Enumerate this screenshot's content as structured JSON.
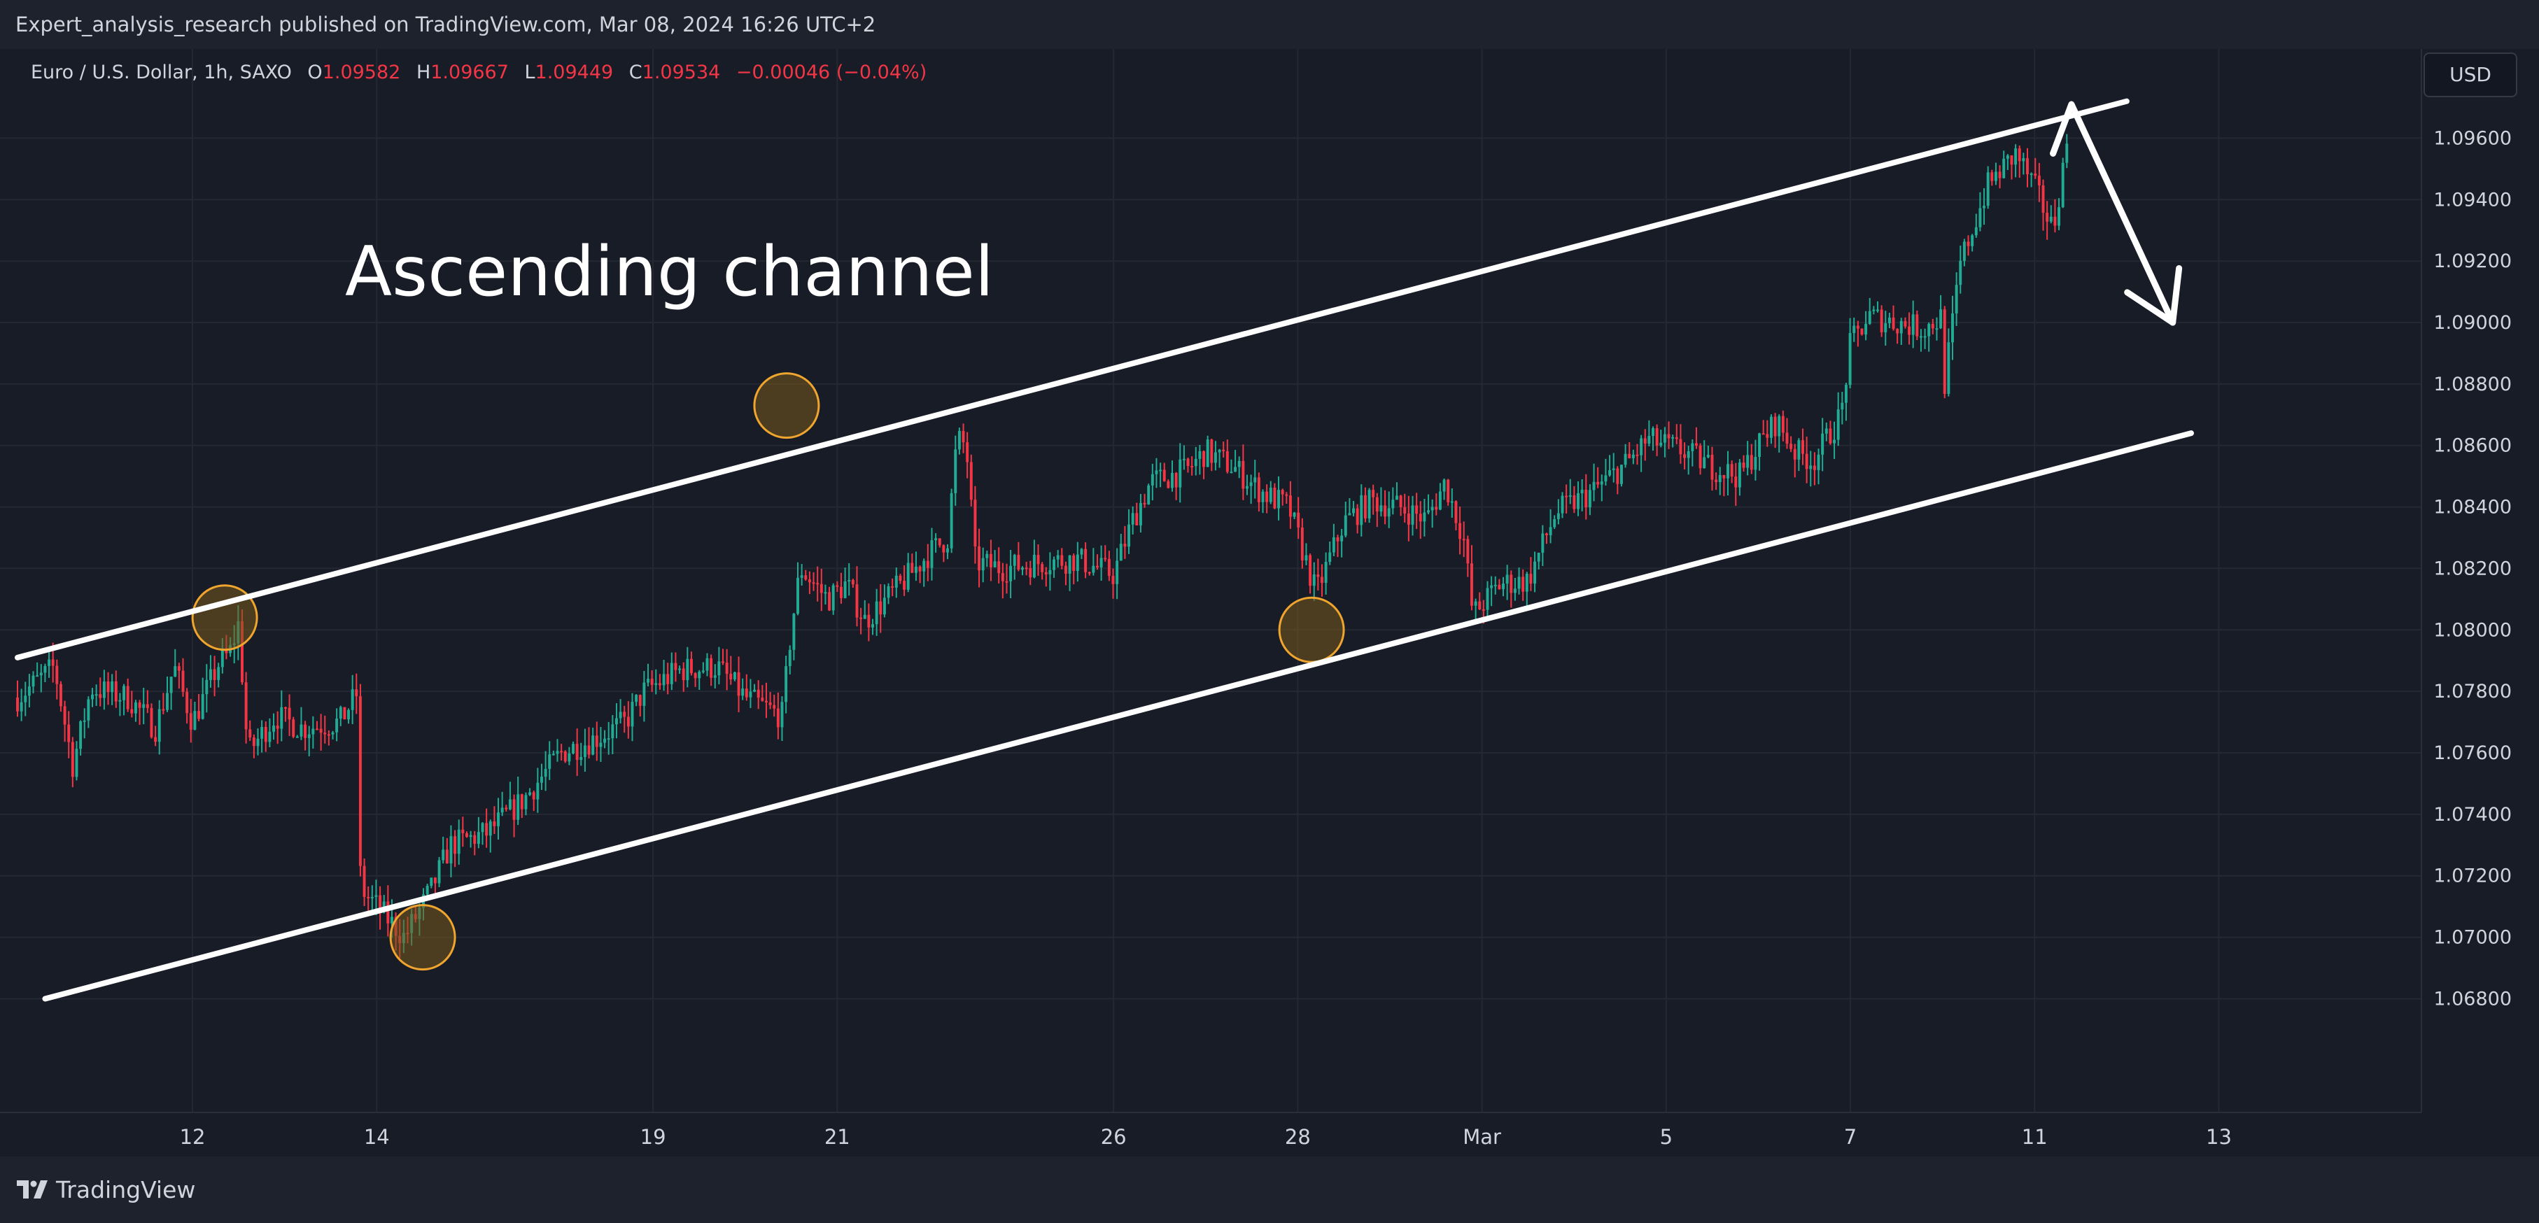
{
  "header": {
    "published_by": "Expert_analysis_research published on TradingView.com, Mar 08, 2024 16:26 UTC+2"
  },
  "legend": {
    "symbol": "Euro / U.S. Dollar, 1h, SAXO",
    "open_label": "O",
    "open": "1.09582",
    "high_label": "H",
    "high": "1.09667",
    "low_label": "L",
    "low": "1.09449",
    "close_label": "C",
    "close": "1.09534",
    "change": "−0.00046 (−0.04%)"
  },
  "price_scale": {
    "currency": "USD"
  },
  "annotation": {
    "text": "Ascending channel"
  },
  "footer": {
    "brand": "TradingView"
  },
  "colors": {
    "up": "#22ab94",
    "down": "#f23645",
    "channel": "#ffffff",
    "touch_fill": "#7a5a1c",
    "touch_stroke": "#f0a52e",
    "grid": "#242833"
  },
  "chart_data": {
    "type": "candlestick",
    "instrument": "Euro / U.S. Dollar",
    "timeframe": "1h",
    "y_ticks": [
      "1.06800",
      "1.07000",
      "1.07200",
      "1.07400",
      "1.07600",
      "1.07800",
      "1.08000",
      "1.08200",
      "1.08400",
      "1.08600",
      "1.08800",
      "1.09000",
      "1.09200",
      "1.09400",
      "1.09600"
    ],
    "ylim": [
      1.0643,
      1.0989
    ],
    "x_ticks": [
      {
        "label": "12",
        "x": 10
      },
      {
        "label": "14",
        "x": 12
      },
      {
        "label": "19",
        "x": 15
      },
      {
        "label": "21",
        "x": 17
      },
      {
        "label": "26",
        "x": 20
      },
      {
        "label": "28",
        "x": 22
      },
      {
        "label": "Mar",
        "x": 24
      },
      {
        "label": "5",
        "x": 26
      },
      {
        "label": "7",
        "x": 28
      },
      {
        "label": "11",
        "x": 30
      },
      {
        "label": "13",
        "x": 32
      }
    ],
    "xlim": [
      8.1,
      34.2
    ],
    "price_points": [
      [
        8.1,
        1.0778
      ],
      [
        8.5,
        1.0788
      ],
      [
        8.7,
        1.0756
      ],
      [
        8.9,
        1.0781
      ],
      [
        9.3,
        1.0778
      ],
      [
        9.6,
        1.0768
      ],
      [
        9.8,
        1.0788
      ],
      [
        10.0,
        1.077
      ],
      [
        10.3,
        1.079
      ],
      [
        10.4,
        1.0792
      ],
      [
        10.5,
        1.0802
      ],
      [
        10.6,
        1.076
      ],
      [
        10.9,
        1.0772
      ],
      [
        11.2,
        1.0768
      ],
      [
        11.6,
        1.077
      ],
      [
        11.8,
        1.078
      ],
      [
        11.8,
        1.0725
      ],
      [
        11.85,
        1.0715
      ],
      [
        12.0,
        1.071
      ],
      [
        12.3,
        1.07
      ],
      [
        12.6,
        1.0716
      ],
      [
        12.8,
        1.073
      ],
      [
        13.2,
        1.0734
      ],
      [
        13.6,
        1.0745
      ],
      [
        14.0,
        1.076
      ],
      [
        14.4,
        1.0765
      ],
      [
        14.7,
        1.077
      ],
      [
        14.9,
        1.078
      ],
      [
        15.3,
        1.0787
      ],
      [
        15.7,
        1.0788
      ],
      [
        16.0,
        1.0778
      ],
      [
        16.4,
        1.0772
      ],
      [
        16.5,
        1.08
      ],
      [
        16.6,
        1.082
      ],
      [
        16.9,
        1.081
      ],
      [
        17.1,
        1.0815
      ],
      [
        17.3,
        1.0803
      ],
      [
        17.7,
        1.0815
      ],
      [
        18.0,
        1.0825
      ],
      [
        18.2,
        1.083
      ],
      [
        18.3,
        1.0862
      ],
      [
        18.4,
        1.086
      ],
      [
        18.5,
        1.0822
      ],
      [
        18.8,
        1.082
      ],
      [
        19.2,
        1.0822
      ],
      [
        19.6,
        1.0823
      ],
      [
        20.0,
        1.0818
      ],
      [
        20.2,
        1.0835
      ],
      [
        20.4,
        1.0848
      ],
      [
        20.8,
        1.0852
      ],
      [
        21.0,
        1.0858
      ],
      [
        21.3,
        1.0853
      ],
      [
        21.6,
        1.0845
      ],
      [
        21.9,
        1.084
      ],
      [
        22.2,
        1.0812
      ],
      [
        22.5,
        1.0835
      ],
      [
        22.8,
        1.0842
      ],
      [
        23.1,
        1.084
      ],
      [
        23.4,
        1.0836
      ],
      [
        23.6,
        1.0848
      ],
      [
        23.8,
        1.083
      ],
      [
        23.9,
        1.0805
      ],
      [
        24.2,
        1.0815
      ],
      [
        24.5,
        1.0816
      ],
      [
        24.8,
        1.0838
      ],
      [
        25.2,
        1.0845
      ],
      [
        25.6,
        1.0855
      ],
      [
        25.8,
        1.0862
      ],
      [
        26.2,
        1.0858
      ],
      [
        26.5,
        1.0853
      ],
      [
        26.8,
        1.085
      ],
      [
        27.0,
        1.086
      ],
      [
        27.2,
        1.0868
      ],
      [
        27.4,
        1.0858
      ],
      [
        27.6,
        1.0855
      ],
      [
        27.9,
        1.087
      ],
      [
        28.0,
        1.0893
      ],
      [
        28.2,
        1.0902
      ],
      [
        28.5,
        1.09
      ],
      [
        28.8,
        1.0898
      ],
      [
        29.0,
        1.0902
      ],
      [
        29.0,
        1.0875
      ],
      [
        29.2,
        1.092
      ],
      [
        29.5,
        1.0945
      ],
      [
        29.8,
        1.0955
      ],
      [
        30.0,
        1.0944
      ],
      [
        30.2,
        1.093
      ],
      [
        30.35,
        1.0958
      ]
    ],
    "channel": {
      "upper": {
        "x": [
          8.1,
          31.0
        ],
        "y": [
          1.0791,
          1.0972
        ]
      },
      "lower": {
        "x": [
          8.4,
          31.7
        ],
        "y": [
          1.068,
          1.0864
        ]
      }
    },
    "forecast_arrow": [
      [
        30.2,
        1.0955
      ],
      [
        30.4,
        1.0971
      ],
      [
        31.5,
        1.09
      ]
    ],
    "touch_points": [
      {
        "x": 10.35,
        "y": 1.0804
      },
      {
        "x": 16.45,
        "y": 1.0873
      },
      {
        "x": 22.15,
        "y": 1.08
      },
      {
        "x": 12.5,
        "y": 1.07
      }
    ]
  }
}
